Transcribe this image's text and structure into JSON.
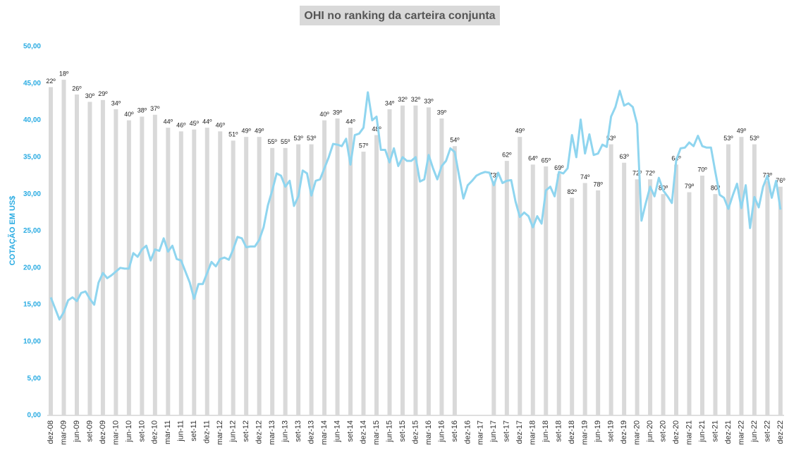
{
  "chart_data": {
    "type": "combo",
    "title": "OHI no ranking da carteira conjunta",
    "y_label": "COTAÇÃO EM US$",
    "ylim": [
      0,
      50
    ],
    "yticks": [
      {
        "value": 0,
        "label": "0,00"
      },
      {
        "value": 5,
        "label": "5,00"
      },
      {
        "value": 10,
        "label": "10,00"
      },
      {
        "value": 15,
        "label": "15,00"
      },
      {
        "value": 20,
        "label": "20,00"
      },
      {
        "value": 25,
        "label": "25,00"
      },
      {
        "value": 30,
        "label": "30,00"
      },
      {
        "value": 35,
        "label": "35,00"
      },
      {
        "value": 40,
        "label": "40,00"
      },
      {
        "value": 45,
        "label": "45,00"
      },
      {
        "value": 50,
        "label": "50,00"
      }
    ],
    "y2lim": [
      200,
      0
    ],
    "grid": false,
    "categories": [
      "dez-08",
      null,
      null,
      "mar-09",
      null,
      null,
      "jun-09",
      null,
      null,
      "set-09",
      null,
      null,
      "dez-09",
      null,
      null,
      "mar-10",
      null,
      null,
      "jun-10",
      null,
      null,
      "set-10",
      null,
      null,
      "dez-10",
      null,
      null,
      "mar-11",
      null,
      null,
      "jun-11",
      null,
      null,
      "set-11",
      null,
      null,
      "dez-11",
      null,
      null,
      "mar-12",
      null,
      null,
      "jun-12",
      null,
      null,
      "set-12",
      null,
      null,
      "dez-12",
      null,
      null,
      "mar-13",
      null,
      null,
      "jun-13",
      null,
      null,
      "set-13",
      null,
      null,
      "dez-13",
      null,
      null,
      "mar-14",
      null,
      null,
      "jun-14",
      null,
      null,
      "set-14",
      null,
      null,
      "dez-14",
      null,
      null,
      "mar-15",
      null,
      null,
      "jun-15",
      null,
      null,
      "set-15",
      null,
      null,
      "dez-15",
      null,
      null,
      "mar-16",
      null,
      null,
      "jun-16",
      null,
      null,
      "set-16",
      null,
      null,
      "dez-16",
      null,
      null,
      "mar-17",
      null,
      null,
      "jun-17",
      null,
      null,
      "set-17",
      null,
      null,
      "dez-17",
      null,
      null,
      "mar-18",
      null,
      null,
      "jun-18",
      null,
      null,
      "set-18",
      null,
      null,
      "dez-18",
      null,
      null,
      "mar-19",
      null,
      null,
      "jun-19",
      null,
      null,
      "set-19",
      null,
      null,
      "dez-19",
      null,
      null,
      "mar-20",
      null,
      null,
      "jun-20",
      null,
      null,
      "set-20",
      null,
      null,
      "dez-20",
      null,
      null,
      "mar-21",
      null,
      null,
      "jun-21",
      null,
      null,
      "set-21",
      null,
      null,
      "dez-21",
      null,
      null,
      "mar-22",
      null,
      null,
      "jun-22",
      null,
      null,
      "set-22",
      null,
      null,
      "dez-22"
    ],
    "series": [
      {
        "type": "bar",
        "axis": "y2",
        "color": "#d9d9d9",
        "values": [
          22,
          null,
          null,
          18,
          null,
          null,
          26,
          null,
          null,
          30,
          null,
          null,
          29,
          null,
          null,
          34,
          null,
          null,
          40,
          null,
          null,
          38,
          null,
          null,
          37,
          null,
          null,
          44,
          null,
          null,
          46,
          null,
          null,
          45,
          null,
          null,
          44,
          null,
          null,
          46,
          null,
          null,
          51,
          null,
          null,
          49,
          null,
          null,
          49,
          null,
          null,
          55,
          null,
          null,
          55,
          null,
          null,
          53,
          null,
          null,
          53,
          null,
          null,
          40,
          null,
          null,
          39,
          null,
          null,
          44,
          null,
          null,
          57,
          null,
          null,
          48,
          null,
          null,
          34,
          null,
          null,
          32,
          null,
          null,
          32,
          null,
          null,
          33,
          null,
          null,
          39,
          null,
          null,
          54,
          null,
          null,
          null,
          null,
          null,
          null,
          null,
          null,
          73,
          null,
          null,
          62,
          null,
          null,
          49,
          null,
          null,
          64,
          null,
          null,
          65,
          null,
          null,
          69,
          null,
          null,
          82,
          null,
          null,
          74,
          null,
          null,
          78,
          null,
          null,
          53,
          null,
          null,
          63,
          null,
          null,
          72,
          null,
          null,
          72,
          null,
          null,
          80,
          null,
          null,
          64,
          null,
          null,
          79,
          null,
          null,
          70,
          null,
          null,
          80,
          null,
          null,
          53,
          null,
          null,
          49,
          null,
          null,
          53,
          null,
          null,
          73,
          null,
          null,
          76
        ],
        "value_labels": [
          "22º",
          null,
          null,
          "18º",
          null,
          null,
          "26º",
          null,
          null,
          "30º",
          null,
          null,
          "29º",
          null,
          null,
          "34º",
          null,
          null,
          "40º",
          null,
          null,
          "38º",
          null,
          null,
          "37º",
          null,
          null,
          "44º",
          null,
          null,
          "46º",
          null,
          null,
          "45º",
          null,
          null,
          "44º",
          null,
          null,
          "46º",
          null,
          null,
          "51º",
          null,
          null,
          "49º",
          null,
          null,
          "49º",
          null,
          null,
          "55º",
          null,
          null,
          "55º",
          null,
          null,
          "53º",
          null,
          null,
          "53º",
          null,
          null,
          "40º",
          null,
          null,
          "39º",
          null,
          null,
          "44º",
          null,
          null,
          "57º",
          null,
          null,
          "48º",
          null,
          null,
          "34º",
          null,
          null,
          "32º",
          null,
          null,
          "32º",
          null,
          null,
          "33º",
          null,
          null,
          "39º",
          null,
          null,
          "54º",
          null,
          null,
          null,
          null,
          null,
          null,
          null,
          null,
          "73º",
          null,
          null,
          "62º",
          null,
          null,
          "49º",
          null,
          null,
          "64º",
          null,
          null,
          "65º",
          null,
          null,
          "69º",
          null,
          null,
          "82º",
          null,
          null,
          "74º",
          null,
          null,
          "78º",
          null,
          null,
          "53º",
          null,
          null,
          "63º",
          null,
          null,
          "72º",
          null,
          null,
          "72º",
          null,
          null,
          "80º",
          null,
          null,
          "64º",
          null,
          null,
          "79º",
          null,
          null,
          "70º",
          null,
          null,
          "80º",
          null,
          null,
          "53º",
          null,
          null,
          "49º",
          null,
          null,
          "53º",
          null,
          null,
          "73º",
          null,
          null,
          "76º"
        ]
      },
      {
        "type": "line",
        "color": "#8fd5ef",
        "values": [
          16,
          14.5,
          13,
          14,
          15.6,
          16,
          15.5,
          16.6,
          16.8,
          15.8,
          15,
          18,
          19.3,
          18.6,
          19,
          19.5,
          20,
          19.9,
          19.9,
          22,
          21.5,
          22.5,
          23,
          21,
          22.5,
          22.3,
          24,
          22.2,
          23,
          21.2,
          21,
          19.5,
          18,
          15.8,
          17.8,
          17.8,
          19.3,
          20.8,
          20.2,
          21.2,
          21.4,
          21.1,
          22.5,
          24.2,
          24,
          22.8,
          22.9,
          22.9,
          23.8,
          25.5,
          28.5,
          30.5,
          32.8,
          32.5,
          31,
          31.8,
          28.4,
          29.7,
          33.2,
          32.8,
          29.8,
          31.8,
          32,
          33.5,
          35,
          36.8,
          36.7,
          36.5,
          37.5,
          34,
          38,
          38.2,
          39,
          43.8,
          40,
          40.5,
          36,
          36,
          34.3,
          36.2,
          33.8,
          35,
          34.5,
          34.5,
          35,
          31.7,
          32,
          35.3,
          33.5,
          32,
          33.8,
          34.5,
          36.2,
          35.7,
          32.5,
          29.4,
          31.2,
          31.8,
          32.5,
          32.8,
          33,
          32.9,
          31.2,
          32.9,
          31.5,
          31.8,
          31.9,
          29,
          26.9,
          27.5,
          27,
          25.5,
          27,
          26,
          30.5,
          31,
          29.7,
          33,
          32.8,
          33.5,
          38,
          35,
          40.1,
          35.5,
          38.1,
          35.3,
          35.5,
          36.7,
          36.4,
          40.5,
          41.8,
          44,
          42,
          42.3,
          41.8,
          39.5,
          26.4,
          28.8,
          31,
          29.7,
          32.2,
          30.5,
          29.7,
          28.8,
          34.6,
          36.2,
          36.3,
          37,
          36.5,
          37.9,
          36.5,
          36.3,
          36.3,
          33,
          29.9,
          29.5,
          28,
          29.8,
          31.4,
          28.1,
          31.2,
          25.4,
          29.6,
          28.2,
          31,
          32.5,
          29.5,
          31.8,
          27.9
        ]
      }
    ]
  }
}
